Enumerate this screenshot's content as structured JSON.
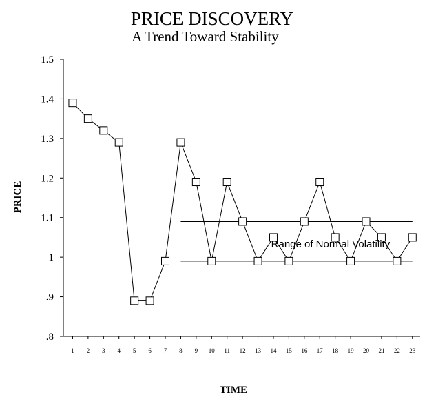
{
  "chart_data": {
    "type": "line",
    "title": "PRICE DISCOVERY",
    "subtitle": "A Trend Toward Stability",
    "xlabel": "TIME",
    "ylabel": "PRICE",
    "x": [
      1,
      2,
      3,
      4,
      5,
      6,
      7,
      8,
      9,
      10,
      11,
      12,
      13,
      14,
      15,
      16,
      17,
      18,
      19,
      20,
      21,
      22,
      23
    ],
    "x_tick_labels": [
      "1",
      "2",
      "3",
      "4",
      "5",
      "6",
      "7",
      "8",
      "9",
      "10",
      "11",
      "12",
      "13",
      "14",
      "15",
      "16",
      "17",
      "18",
      "19",
      "20",
      "21",
      "22",
      "23"
    ],
    "series": [
      {
        "values": [
          1.39,
          1.35,
          1.32,
          1.29,
          0.89,
          0.89,
          0.99,
          1.29,
          1.19,
          0.99,
          1.19,
          1.09,
          0.99,
          1.05,
          0.99,
          1.09,
          1.19,
          1.05,
          0.99,
          1.09,
          1.05,
          0.99,
          1.05
        ],
        "marker": "square",
        "color": "#000000"
      }
    ],
    "y_ticks": [
      0.8,
      0.9,
      1.0,
      1.1,
      1.2,
      1.3,
      1.4,
      1.5
    ],
    "y_tick_labels": [
      ".8",
      ".9",
      "1",
      "1.1",
      "1.2",
      "1.3",
      "1.4",
      "1.5"
    ],
    "ylim": [
      0.8,
      1.5
    ],
    "xlim": [
      0.4,
      23.5
    ],
    "grid": false,
    "reference_lines": [
      {
        "y": 1.09,
        "x_from": 8,
        "x_to": 23
      },
      {
        "y": 0.99,
        "x_from": 8,
        "x_to": 23
      }
    ],
    "annotations": [
      {
        "text": "Range of Normal Volatility",
        "x": 17.7,
        "y": 1.025
      }
    ]
  }
}
